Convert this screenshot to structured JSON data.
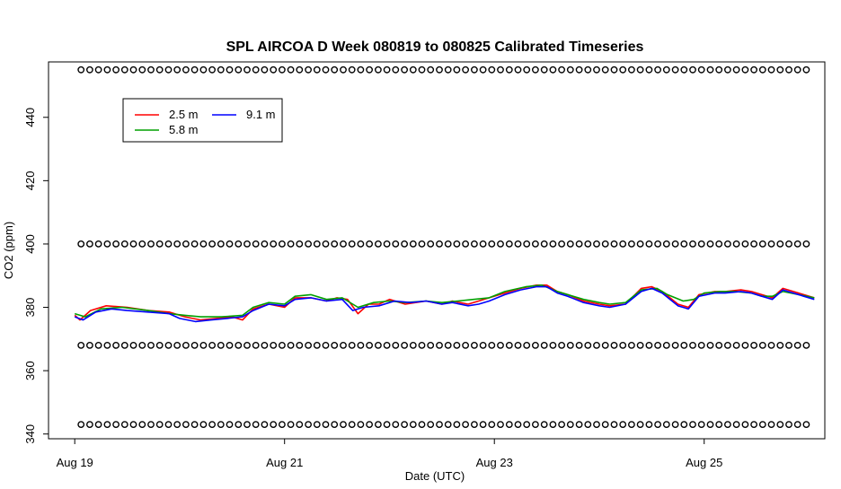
{
  "chart_data": {
    "type": "line",
    "title": "SPL AIRCOA D  Week 080819 to 080825  Calibrated Timeseries",
    "xlabel": "Date (UTC)",
    "ylabel": "CO2 (ppm)",
    "xlim": [
      -0.25,
      7.15
    ],
    "ylim": [
      338.5,
      457.5
    ],
    "x_unit": "days since Aug 19 00:00 UTC",
    "x_ticks": [
      {
        "value": 0,
        "label": "Aug 19"
      },
      {
        "value": 2,
        "label": "Aug 21"
      },
      {
        "value": 4,
        "label": "Aug 23"
      },
      {
        "value": 6,
        "label": "Aug 25"
      }
    ],
    "y_ticks": [
      340,
      360,
      380,
      400,
      420,
      440
    ],
    "legend": {
      "position": "top-left",
      "entries": [
        {
          "name": "2.5 m",
          "color": "#ff0000"
        },
        {
          "name": "5.8 m",
          "color": "#00a000"
        },
        {
          "name": "9.1 m",
          "color": "#0000ff"
        }
      ]
    },
    "series": [
      {
        "name": "2.5 m",
        "color": "#ff0000",
        "points": [
          [
            0,
            377.5
          ],
          [
            0.05,
            376
          ],
          [
            0.15,
            379
          ],
          [
            0.3,
            380.5
          ],
          [
            0.5,
            380
          ],
          [
            0.7,
            379
          ],
          [
            0.9,
            378.5
          ],
          [
            1.05,
            377
          ],
          [
            1.2,
            376
          ],
          [
            1.35,
            376.5
          ],
          [
            1.5,
            377
          ],
          [
            1.6,
            376
          ],
          [
            1.7,
            379.5
          ],
          [
            1.85,
            381
          ],
          [
            2.0,
            380
          ],
          [
            2.1,
            383
          ],
          [
            2.25,
            383
          ],
          [
            2.4,
            382
          ],
          [
            2.5,
            383
          ],
          [
            2.6,
            382.5
          ],
          [
            2.7,
            378
          ],
          [
            2.8,
            381
          ],
          [
            2.9,
            381
          ],
          [
            3.0,
            382.5
          ],
          [
            3.15,
            381
          ],
          [
            3.35,
            382
          ],
          [
            3.5,
            381
          ],
          [
            3.6,
            382
          ],
          [
            3.75,
            381
          ],
          [
            3.85,
            382
          ],
          [
            3.95,
            383
          ],
          [
            4.1,
            384.5
          ],
          [
            4.25,
            386
          ],
          [
            4.4,
            387
          ],
          [
            4.5,
            387
          ],
          [
            4.6,
            385
          ],
          [
            4.7,
            384
          ],
          [
            4.85,
            382
          ],
          [
            5.0,
            381
          ],
          [
            5.1,
            380.5
          ],
          [
            5.25,
            381
          ],
          [
            5.4,
            386
          ],
          [
            5.5,
            386.5
          ],
          [
            5.6,
            385
          ],
          [
            5.75,
            381
          ],
          [
            5.85,
            380
          ],
          [
            5.95,
            384
          ],
          [
            6.1,
            385
          ],
          [
            6.2,
            385
          ],
          [
            6.35,
            385.5
          ],
          [
            6.45,
            385
          ],
          [
            6.55,
            384
          ],
          [
            6.65,
            383
          ],
          [
            6.75,
            386
          ],
          [
            6.85,
            385
          ],
          [
            6.95,
            384
          ],
          [
            7.05,
            383
          ]
        ]
      },
      {
        "name": "5.8 m",
        "color": "#00a000",
        "points": [
          [
            0,
            378
          ],
          [
            0.1,
            377
          ],
          [
            0.25,
            379.5
          ],
          [
            0.45,
            380
          ],
          [
            0.7,
            379
          ],
          [
            0.9,
            378
          ],
          [
            1.05,
            377.5
          ],
          [
            1.2,
            377
          ],
          [
            1.4,
            377
          ],
          [
            1.6,
            377.5
          ],
          [
            1.7,
            380
          ],
          [
            1.85,
            381.5
          ],
          [
            2.0,
            381
          ],
          [
            2.1,
            383.5
          ],
          [
            2.25,
            384
          ],
          [
            2.4,
            382.5
          ],
          [
            2.55,
            383
          ],
          [
            2.7,
            380
          ],
          [
            2.85,
            381.5
          ],
          [
            3.0,
            382
          ],
          [
            3.15,
            381.5
          ],
          [
            3.35,
            382
          ],
          [
            3.5,
            381.5
          ],
          [
            3.65,
            382
          ],
          [
            3.8,
            382.5
          ],
          [
            3.95,
            383
          ],
          [
            4.1,
            385
          ],
          [
            4.3,
            386.5
          ],
          [
            4.45,
            387
          ],
          [
            4.6,
            385
          ],
          [
            4.7,
            384
          ],
          [
            4.85,
            382.5
          ],
          [
            5.0,
            381.5
          ],
          [
            5.1,
            381
          ],
          [
            5.25,
            381.5
          ],
          [
            5.4,
            385.5
          ],
          [
            5.55,
            386
          ],
          [
            5.65,
            384
          ],
          [
            5.8,
            382
          ],
          [
            5.9,
            382.5
          ],
          [
            6.0,
            384.5
          ],
          [
            6.15,
            385
          ],
          [
            6.3,
            385
          ],
          [
            6.45,
            384.5
          ],
          [
            6.55,
            383.5
          ],
          [
            6.65,
            383.5
          ],
          [
            6.75,
            385
          ],
          [
            6.9,
            384
          ],
          [
            7.05,
            383
          ]
        ]
      },
      {
        "name": "9.1 m",
        "color": "#0000ff",
        "points": [
          [
            0,
            377
          ],
          [
            0.08,
            376
          ],
          [
            0.2,
            378.5
          ],
          [
            0.35,
            379.5
          ],
          [
            0.5,
            379
          ],
          [
            0.7,
            378.5
          ],
          [
            0.9,
            378
          ],
          [
            1.0,
            376.5
          ],
          [
            1.15,
            375.5
          ],
          [
            1.3,
            376
          ],
          [
            1.45,
            376.5
          ],
          [
            1.6,
            377
          ],
          [
            1.7,
            379
          ],
          [
            1.85,
            381
          ],
          [
            2.0,
            380.5
          ],
          [
            2.1,
            382.5
          ],
          [
            2.25,
            383
          ],
          [
            2.4,
            382
          ],
          [
            2.55,
            382.5
          ],
          [
            2.65,
            379
          ],
          [
            2.75,
            380
          ],
          [
            2.9,
            380.5
          ],
          [
            3.05,
            382
          ],
          [
            3.2,
            381.5
          ],
          [
            3.35,
            382
          ],
          [
            3.5,
            381
          ],
          [
            3.6,
            381.5
          ],
          [
            3.75,
            380.5
          ],
          [
            3.85,
            381
          ],
          [
            3.95,
            382
          ],
          [
            4.1,
            384
          ],
          [
            4.25,
            385.5
          ],
          [
            4.4,
            386.5
          ],
          [
            4.5,
            386.5
          ],
          [
            4.6,
            384.5
          ],
          [
            4.7,
            383.5
          ],
          [
            4.85,
            381.5
          ],
          [
            5.0,
            380.5
          ],
          [
            5.1,
            380
          ],
          [
            5.25,
            381
          ],
          [
            5.4,
            385
          ],
          [
            5.5,
            386
          ],
          [
            5.6,
            384.5
          ],
          [
            5.75,
            380.5
          ],
          [
            5.85,
            379.5
          ],
          [
            5.95,
            383.5
          ],
          [
            6.1,
            384.5
          ],
          [
            6.2,
            384.5
          ],
          [
            6.35,
            385
          ],
          [
            6.45,
            384.5
          ],
          [
            6.55,
            383.5
          ],
          [
            6.65,
            382.5
          ],
          [
            6.75,
            385.5
          ],
          [
            6.85,
            384.5
          ],
          [
            6.95,
            383.5
          ],
          [
            7.05,
            382.5
          ]
        ]
      }
    ],
    "reference_levels": [
      {
        "value": 455,
        "marker": "o"
      },
      {
        "value": 400,
        "marker": "o"
      },
      {
        "value": 368,
        "marker": "o"
      },
      {
        "value": 343,
        "marker": "o"
      }
    ],
    "grid": false
  }
}
